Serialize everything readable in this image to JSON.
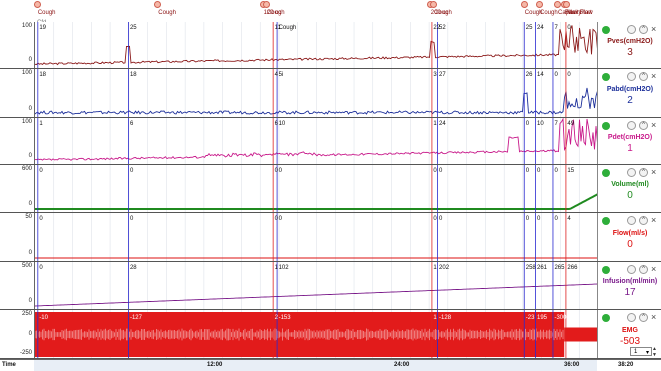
{
  "markers": [
    {
      "label": "Cough",
      "x": 0.5
    },
    {
      "label": "Cough",
      "x": 21.9
    },
    {
      "label": "120 cc",
      "x": 40.6
    },
    {
      "label": "Cough",
      "x": 41.2
    },
    {
      "label": "200 cc",
      "x": 70.3
    },
    {
      "label": "Cough",
      "x": 70.9
    },
    {
      "label": "Cough",
      "x": 87.0
    },
    {
      "label": "Cough",
      "x": 89.7
    },
    {
      "label": "Capacity",
      "x": 92.9
    },
    {
      "label": "Flow Start",
      "x": 94.1
    },
    {
      "label": "Max Flow",
      "x": 94.5
    }
  ],
  "first_marker_sublabel": "Cfd",
  "channels": [
    {
      "name": "Pves(cmH2O)",
      "value": "3",
      "color": "#8b1a1a",
      "axis": [
        "100",
        "0"
      ],
      "cursors": [
        "19",
        "25",
        "11",
        "Cough",
        "22",
        "52",
        "25",
        "24",
        "7",
        "0"
      ]
    },
    {
      "name": "Pabd(cmH2O)",
      "value": "2",
      "color": "#1c2f9a",
      "axis": [
        "100",
        "0"
      ],
      "cursors": [
        "18",
        "18",
        "4",
        "5i",
        "3",
        "27",
        "26",
        "14",
        "0",
        "0"
      ]
    },
    {
      "name": "Pdet(cmH2O)",
      "value": "1",
      "color": "#c8198a",
      "axis": [
        "100",
        "0"
      ],
      "cursors": [
        "1",
        "6",
        "6",
        "10",
        "1",
        "24",
        "0",
        "10",
        "7",
        "49"
      ]
    },
    {
      "name": "Volume(ml)",
      "value": "0",
      "color": "#1f8a1f",
      "axis": [
        "600",
        "0"
      ],
      "cursors": [
        "0",
        "0",
        "0",
        "0",
        "0",
        "0",
        "0",
        "0",
        "0",
        "15"
      ]
    },
    {
      "name": "Flow(ml/s)",
      "value": "0",
      "color": "#d11",
      "axis": [
        "50",
        "0"
      ],
      "cursors": [
        "0",
        "0",
        "0",
        "0",
        "0",
        "0",
        "0",
        "0",
        "0",
        "4"
      ]
    },
    {
      "name": "Infusion(ml/min)",
      "value": "17",
      "color": "#7a1a8a",
      "axis": [
        "500",
        "0"
      ],
      "cursors": [
        "0",
        "28",
        "1",
        "102",
        "1",
        "202",
        "258",
        "261",
        "265",
        "266"
      ]
    },
    {
      "name": "EMG",
      "value": "-503",
      "color": "#d11",
      "axis": [
        "250",
        "0",
        "-250"
      ],
      "cursors": [
        "-10",
        "-127",
        "2",
        "-153",
        "1",
        "-128",
        "-23",
        "195",
        "-300",
        "137"
      ]
    }
  ],
  "time_axis": {
    "label_time": "Time",
    "ticks": [
      "12:00",
      "24:00",
      "36:00"
    ],
    "end": "38:20"
  },
  "spinner_value": "1"
}
